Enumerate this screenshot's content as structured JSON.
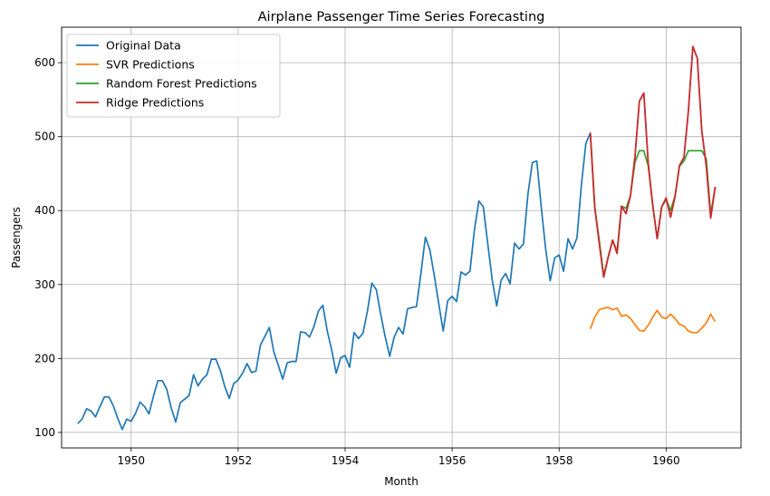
{
  "chart_data": {
    "type": "line",
    "title": "Airplane Passenger Time Series Forecasting",
    "xlabel": "Month",
    "ylabel": "Passengers",
    "xlim": [
      1948.7,
      1961.4
    ],
    "ylim": [
      79,
      648
    ],
    "xticks": [
      1950,
      1952,
      1954,
      1956,
      1958,
      1960
    ],
    "yticks": [
      100,
      200,
      300,
      400,
      500,
      600
    ],
    "grid": true,
    "legend_position": "top-left",
    "x_start": 1949.0,
    "x_step": 0.0833333,
    "series": [
      {
        "name": "Original Data",
        "color": "#1f77b4",
        "start_index": 0,
        "values": [
          112,
          118,
          132,
          129,
          121,
          135,
          148,
          148,
          136,
          119,
          104,
          118,
          115,
          126,
          141,
          135,
          125,
          149,
          170,
          170,
          158,
          133,
          114,
          140,
          145,
          150,
          178,
          163,
          172,
          178,
          199,
          199,
          184,
          162,
          146,
          166,
          171,
          180,
          193,
          181,
          183,
          218,
          230,
          242,
          209,
          191,
          172,
          194,
          196,
          196,
          236,
          235,
          229,
          243,
          264,
          272,
          237,
          211,
          180,
          201,
          204,
          188,
          235,
          227,
          234,
          264,
          302,
          293,
          259,
          229,
          203,
          229,
          242,
          233,
          267,
          269,
          270,
          315,
          364,
          347,
          312,
          274,
          237,
          278,
          284,
          277,
          317,
          313,
          318,
          374,
          413,
          405,
          355,
          306,
          271,
          306,
          315,
          301,
          356,
          348,
          355,
          422,
          465,
          467,
          404,
          347,
          305,
          336,
          340,
          318,
          362,
          348,
          363,
          435,
          491,
          505,
          404,
          359,
          310,
          337,
          360,
          342,
          406,
          396,
          420,
          472,
          548,
          559,
          463,
          407,
          362,
          405,
          417,
          391,
          419,
          461,
          472,
          535,
          622,
          606,
          508,
          461,
          390,
          432
        ]
      },
      {
        "name": "SVR Predictions",
        "color": "#ff7f0e",
        "start_index": 115,
        "values": [
          240,
          256,
          266,
          268,
          269,
          266,
          268,
          257,
          259,
          254,
          246,
          238,
          237,
          245,
          256,
          265,
          256,
          254,
          260,
          254,
          246,
          244,
          237,
          235,
          235,
          241,
          248,
          260,
          250
        ]
      },
      {
        "name": "Random Forest Predictions",
        "color": "#2ca02c",
        "start_index": 115,
        "values": [
          505,
          404,
          359,
          312,
          337,
          360,
          345,
          406,
          403,
          420,
          465,
          481,
          481,
          460,
          407,
          362,
          405,
          415,
          400,
          420,
          460,
          467,
          481,
          481,
          481,
          481,
          470,
          395,
          432
        ]
      },
      {
        "name": "Ridge Predictions",
        "color": "#d62728",
        "start_index": 115,
        "values": [
          505,
          404,
          355,
          310,
          337,
          360,
          342,
          406,
          396,
          420,
          472,
          548,
          559,
          463,
          407,
          362,
          405,
          417,
          391,
          419,
          461,
          472,
          535,
          622,
          606,
          508,
          461,
          390,
          432
        ]
      }
    ]
  }
}
